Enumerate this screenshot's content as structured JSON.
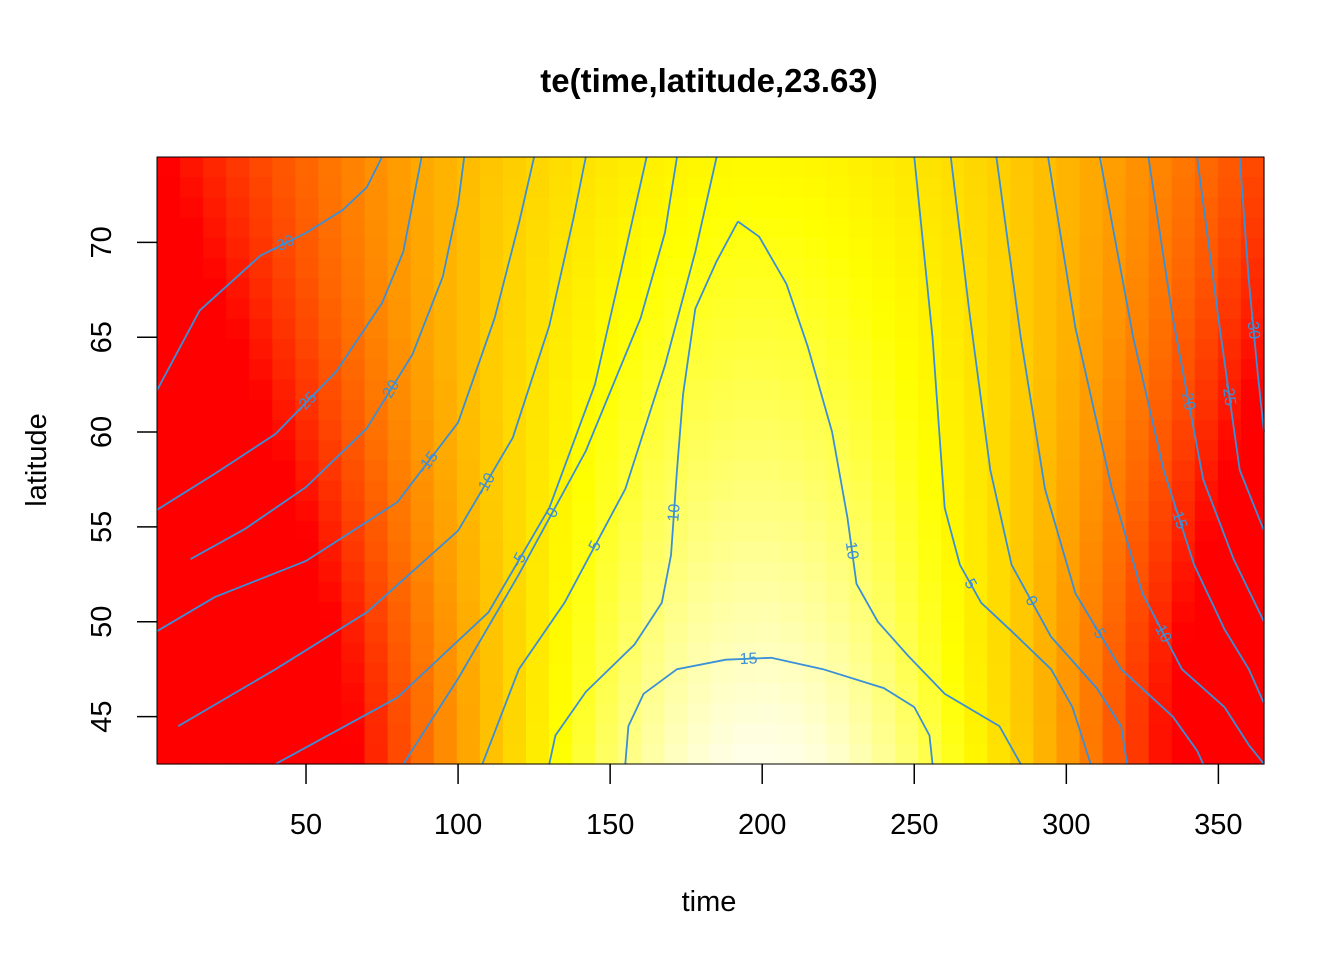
{
  "chart_data": {
    "type": "heatmap",
    "title": "te(time,latitude,23.63)",
    "xlabel": "time",
    "ylabel": "latitude",
    "xlim": [
      1,
      365
    ],
    "ylim": [
      42.5,
      74.5
    ],
    "x_ticks": [
      50,
      100,
      150,
      200,
      250,
      300,
      350
    ],
    "x_tick_labels": [
      "50",
      "100",
      "150",
      "200",
      "250",
      "300",
      "350"
    ],
    "y_ticks": [
      45,
      50,
      55,
      60,
      65,
      70
    ],
    "y_tick_labels": [
      "45",
      "50",
      "55",
      "60",
      "65",
      "70"
    ],
    "colormap": "heat",
    "color_low": "#ff0000",
    "color_mid": "#ffff00",
    "color_high": "#ffffff",
    "contour_color": "#3a8fd9",
    "contours": [
      {
        "level": -30,
        "label": "-30",
        "segments": [
          [
            [
              1,
              62.2
            ],
            [
              15,
              66.4
            ],
            [
              35,
              69.3
            ],
            [
              50,
              70.5
            ],
            [
              62,
              71.7
            ],
            [
              70,
              72.9
            ],
            [
              75,
              74.5
            ]
          ],
          [
            [
              357,
              74.5
            ],
            [
              360,
              68
            ],
            [
              363,
              63
            ],
            [
              365,
              60
            ]
          ]
        ]
      },
      {
        "level": -25,
        "label": "-25",
        "segments": [
          [
            [
              1,
              55.9
            ],
            [
              20,
              57.8
            ],
            [
              40,
              59.9
            ],
            [
              60,
              63.2
            ],
            [
              75,
              66.8
            ],
            [
              82,
              69.5
            ],
            [
              88,
              74.5
            ]
          ],
          [
            [
              343,
              74.5
            ],
            [
              350,
              66
            ],
            [
              357,
              58
            ],
            [
              365,
              54.8
            ]
          ]
        ]
      },
      {
        "level": -20,
        "label": "-20",
        "segments": [
          [
            [
              12,
              53.3
            ],
            [
              30,
              54.9
            ],
            [
              50,
              57.1
            ],
            [
              70,
              60.2
            ],
            [
              85,
              64.1
            ],
            [
              95,
              68.2
            ],
            [
              100,
              72
            ],
            [
              102,
              74.5
            ]
          ],
          [
            [
              327,
              74.5
            ],
            [
              335,
              66
            ],
            [
              345,
              57.5
            ],
            [
              355,
              53.3
            ],
            [
              365,
              50
            ]
          ]
        ]
      },
      {
        "level": -15,
        "label": "-15",
        "segments": [
          [
            [
              1,
              49.5
            ],
            [
              20,
              51.3
            ],
            [
              50,
              53.2
            ],
            [
              80,
              56.3
            ],
            [
              100,
              60.5
            ],
            [
              112,
              66
            ],
            [
              120,
              71
            ],
            [
              125,
              74.5
            ]
          ],
          [
            [
              311,
              74.5
            ],
            [
              322,
              65
            ],
            [
              332,
              58
            ],
            [
              342,
              53
            ],
            [
              352,
              49.6
            ],
            [
              360,
              47.5
            ],
            [
              365,
              45.7
            ]
          ]
        ]
      },
      {
        "level": -10,
        "label": "-10",
        "segments": [
          [
            [
              8,
              44.5
            ],
            [
              40,
              47.5
            ],
            [
              70,
              50.5
            ],
            [
              100,
              54.8
            ],
            [
              118,
              59.7
            ],
            [
              130,
              65.6
            ],
            [
              138,
              71.3
            ],
            [
              142,
              74.5
            ]
          ],
          [
            [
              294,
              74.5
            ],
            [
              303,
              65.5
            ],
            [
              315,
              57
            ],
            [
              325,
              51.5
            ],
            [
              338,
              47.5
            ],
            [
              352,
              45.5
            ],
            [
              360,
              43.5
            ],
            [
              365,
              42.5
            ]
          ]
        ]
      },
      {
        "level": -5,
        "label": "-5",
        "segments": [
          [
            [
              40,
              42.5
            ],
            [
              80,
              46
            ],
            [
              110,
              50.5
            ],
            [
              130,
              56
            ],
            [
              145,
              62.5
            ],
            [
              155,
              69.5
            ],
            [
              162,
              74.5
            ]
          ],
          [
            [
              277,
              74.5
            ],
            [
              285,
              65
            ],
            [
              293,
              57
            ],
            [
              303,
              51.5
            ],
            [
              318,
              47.5
            ],
            [
              335,
              45
            ],
            [
              343,
              43.2
            ],
            [
              345,
              42.5
            ]
          ]
        ]
      },
      {
        "level": 0,
        "label": "0",
        "segments": [
          [
            [
              82,
              42.5
            ],
            [
              100,
              47
            ],
            [
              120,
              52.5
            ],
            [
              142,
              59
            ],
            [
              160,
              66
            ],
            [
              168,
              70.5
            ],
            [
              172,
              74.5
            ]
          ],
          [
            [
              262,
              74.5
            ],
            [
              268,
              66.5
            ],
            [
              275,
              58
            ],
            [
              282,
              53
            ],
            [
              295,
              49.2
            ],
            [
              310,
              46.5
            ],
            [
              318,
              44.5
            ],
            [
              320,
              42.5
            ]
          ]
        ]
      },
      {
        "level": 5,
        "label": "5",
        "segments": [
          [
            [
              108,
              42.5
            ],
            [
              120,
              47.5
            ],
            [
              135,
              51
            ],
            [
              155,
              57
            ],
            [
              168,
              63.5
            ],
            [
              178,
              69.5
            ],
            [
              185,
              74.5
            ]
          ],
          [
            [
              250,
              74.5
            ],
            [
              256,
              65
            ],
            [
              260,
              56
            ],
            [
              265,
              53
            ],
            [
              272,
              51
            ],
            [
              282,
              49.5
            ],
            [
              295,
              47.5
            ],
            [
              302,
              45.5
            ],
            [
              308,
              42.5
            ]
          ]
        ]
      },
      {
        "level": 10,
        "label": "10",
        "segments": [
          [
            [
              192,
              71.1
            ],
            [
              185,
              69
            ],
            [
              178,
              66.5
            ],
            [
              174,
              62
            ],
            [
              172,
              58
            ],
            [
              170,
              53.5
            ],
            [
              167,
              51
            ],
            [
              158,
              48.8
            ],
            [
              142,
              46.3
            ],
            [
              132,
              44
            ],
            [
              130,
              42.5
            ]
          ],
          [
            [
              192,
              71.1
            ],
            [
              199,
              70.3
            ],
            [
              208,
              67.8
            ],
            [
              215,
              64.5
            ],
            [
              223,
              60
            ],
            [
              228,
              55.5
            ],
            [
              231,
              52
            ],
            [
              238,
              50
            ],
            [
              248,
              48.2
            ],
            [
              260,
              46.2
            ],
            [
              278,
              44.5
            ],
            [
              285,
              42.5
            ]
          ]
        ]
      },
      {
        "level": 15,
        "label": "15",
        "segments": [
          [
            [
              155,
              42.5
            ],
            [
              156,
              44.5
            ],
            [
              161,
              46.2
            ],
            [
              172,
              47.5
            ],
            [
              188,
              48
            ],
            [
              203,
              48.1
            ],
            [
              220,
              47.5
            ],
            [
              240,
              46.5
            ],
            [
              250,
              45.5
            ],
            [
              255,
              44
            ],
            [
              256,
              42.5
            ]
          ]
        ]
      }
    ]
  }
}
